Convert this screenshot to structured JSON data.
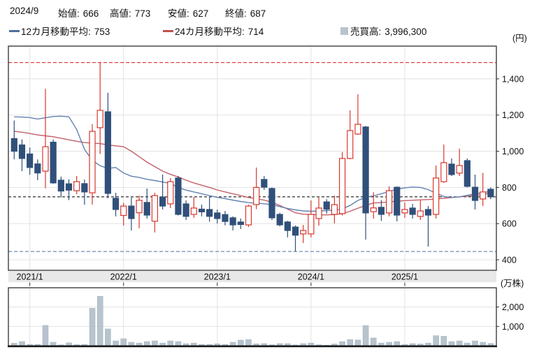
{
  "header": {
    "date": "2024/9",
    "stats": [
      {
        "label": "始値:",
        "value": "666"
      },
      {
        "label": "高値:",
        "value": "773"
      },
      {
        "label": "安値:",
        "value": "627"
      },
      {
        "label": "終値:",
        "value": "687"
      }
    ]
  },
  "legend": {
    "ma12_label": "12カ月移動平均:",
    "ma12_value": "753",
    "ma24_label": "24カ月移動平均:",
    "ma24_value": "714",
    "volume_label": "売買高:",
    "volume_value": "3,996,300"
  },
  "axes": {
    "price_unit": "(円)",
    "volume_unit": "(万株)",
    "price_tick_labels": [
      "1,400",
      "1,200",
      "1,000",
      "800",
      "600",
      "400"
    ],
    "price_tick_values": [
      1400,
      1200,
      1000,
      800,
      600,
      400
    ],
    "volume_tick_labels": [
      "2,000",
      "1,000"
    ],
    "volume_tick_values": [
      2000,
      1000
    ],
    "x_tick_labels": [
      "2021/1",
      "2022/1",
      "2023/1",
      "2024/1",
      "2025/1"
    ],
    "x_tick_indices": [
      2,
      14,
      26,
      38,
      50
    ]
  },
  "colors": {
    "up_candle": "#d8372e",
    "down_candle": "#30507a",
    "ma12": "#6282b2",
    "ma24": "#c2606a",
    "volume_bar": "#b7c4cd",
    "volume_bar_border": "#9fb0bc",
    "ref_high": "#e03131",
    "ref_last": "#1a1a1a",
    "ref_low": "#7d97b8",
    "grid": "#e3e3e3",
    "band": "#e8e8e8",
    "border": "#2e2e2e",
    "text": "#111111",
    "legend_ma12": "#4a6fa0",
    "legend_ma24": "#c0504d",
    "legend_volume": "#b7c4cd"
  },
  "chart_data": {
    "type": "candlestick+volume",
    "title": "monthly stock price chart",
    "months": [
      "2020/11",
      "2020/12",
      "2021/1",
      "2021/2",
      "2021/3",
      "2021/4",
      "2021/5",
      "2021/6",
      "2021/7",
      "2021/8",
      "2021/9",
      "2021/10",
      "2021/11",
      "2021/12",
      "2022/1",
      "2022/2",
      "2022/3",
      "2022/4",
      "2022/5",
      "2022/6",
      "2022/7",
      "2022/8",
      "2022/9",
      "2022/10",
      "2022/11",
      "2022/12",
      "2023/1",
      "2023/2",
      "2023/3",
      "2023/4",
      "2023/5",
      "2023/6",
      "2023/7",
      "2023/8",
      "2023/9",
      "2023/10",
      "2023/11",
      "2023/12",
      "2024/1",
      "2024/2",
      "2024/3",
      "2024/4",
      "2024/5",
      "2024/6",
      "2024/7",
      "2024/8",
      "2024/9",
      "2024/10",
      "2024/11",
      "2024/12",
      "2025/1",
      "2025/2",
      "2025/3",
      "2025/4",
      "2025/5",
      "2025/6",
      "2025/7",
      "2025/8",
      "2025/9",
      "2025/10",
      "2025/11",
      "2025/12"
    ],
    "open": [
      1070,
      1035,
      985,
      930,
      890,
      1050,
      840,
      820,
      782,
      821,
      770,
      1130,
      1218,
      740,
      645,
      697,
      660,
      717,
      613,
      747,
      709,
      852,
      709,
      651,
      680,
      678,
      659,
      650,
      632,
      609,
      593,
      705,
      844,
      794,
      651,
      609,
      581,
      543,
      543,
      628,
      720,
      651,
      655,
      960,
      1095,
      1134,
      666,
      690,
      659,
      801,
      659,
      686,
      640,
      678,
      651,
      832,
      929,
      879,
      948,
      801,
      736,
      790
    ],
    "high": [
      1170,
      1065,
      1020,
      955,
      1345,
      1065,
      860,
      845,
      863,
      844,
      1150,
      1490,
      1323,
      770,
      715,
      744,
      755,
      794,
      770,
      871,
      852,
      863,
      728,
      747,
      705,
      750,
      678,
      670,
      640,
      628,
      705,
      910,
      863,
      800,
      660,
      615,
      590,
      593,
      728,
      744,
      735,
      755,
      995,
      1226,
      1315,
      1140,
      773,
      730,
      806,
      805,
      717,
      709,
      728,
      697,
      921,
      1037,
      960,
      1014,
      960,
      871,
      880,
      800
    ],
    "low": [
      955,
      890,
      870,
      840,
      795,
      820,
      745,
      730,
      763,
      705,
      705,
      985,
      740,
      640,
      589,
      562,
      574,
      628,
      551,
      678,
      686,
      645,
      620,
      632,
      640,
      610,
      601,
      590,
      562,
      570,
      581,
      680,
      786,
      620,
      585,
      524,
      446,
      493,
      524,
      589,
      655,
      601,
      645,
      956,
      1090,
      512,
      627,
      615,
      640,
      612,
      632,
      628,
      620,
      473,
      628,
      825,
      863,
      863,
      800,
      678,
      697,
      735
    ],
    "close": [
      1000,
      960,
      910,
      880,
      1025,
      825,
      780,
      785,
      832,
      775,
      1110,
      1226,
      767,
      678,
      697,
      628,
      729,
      647,
      755,
      697,
      832,
      651,
      640,
      686,
      665,
      640,
      628,
      612,
      593,
      595,
      697,
      800,
      801,
      632,
      593,
      562,
      536,
      562,
      651,
      686,
      680,
      705,
      960,
      1114,
      1149,
      659,
      687,
      651,
      782,
      647,
      678,
      651,
      670,
      647,
      852,
      937,
      871,
      921,
      806,
      728,
      775,
      748
    ],
    "volume_10k_shares": [
      130,
      215,
      70,
      70,
      1050,
      180,
      45,
      150,
      55,
      65,
      1940,
      2560,
      870,
      250,
      360,
      180,
      140,
      215,
      250,
      140,
      250,
      215,
      105,
      140,
      70,
      70,
      100,
      70,
      180,
      290,
      320,
      100,
      110,
      50,
      110,
      110,
      40,
      110,
      140,
      50,
      30,
      90,
      215,
      320,
      300,
      1046,
      400,
      140,
      180,
      215,
      60,
      110,
      90,
      140,
      520,
      490,
      215,
      250,
      140,
      250,
      180,
      120
    ],
    "ma12": [
      1190,
      1189,
      1186,
      1178,
      1185,
      1192,
      1194,
      1190,
      1120,
      1010,
      950,
      920,
      905,
      910,
      880,
      862,
      855,
      845,
      838,
      830,
      822,
      800,
      785,
      775,
      765,
      755,
      745,
      738,
      730,
      722,
      716,
      712,
      710,
      705,
      694,
      684,
      676,
      670,
      668,
      670,
      672,
      674,
      682,
      700,
      728,
      745,
      753,
      765,
      778,
      790,
      798,
      802,
      800,
      788,
      768,
      750,
      744,
      748,
      756,
      765,
      772,
      778
    ],
    "ma24": [
      1110,
      1105,
      1098,
      1090,
      1085,
      1080,
      1072,
      1063,
      1055,
      1048,
      1045,
      1042,
      1035,
      1030,
      1025,
      1000,
      970,
      940,
      915,
      890,
      872,
      858,
      840,
      825,
      812,
      800,
      786,
      775,
      765,
      755,
      744,
      738,
      730,
      718,
      700,
      680,
      660,
      652,
      650,
      649,
      648,
      650,
      655,
      668,
      685,
      700,
      714,
      716,
      720,
      724,
      727,
      729,
      731,
      733,
      736,
      740,
      744,
      748,
      752,
      756,
      762,
      768
    ],
    "reference_lines": {
      "period_high": 1490,
      "latest_close": 748,
      "period_low": 446
    },
    "price_axis_range": [
      342,
      1581
    ],
    "volume_axis_range": [
      0,
      3000
    ],
    "grid": true,
    "legend_position": "top"
  }
}
